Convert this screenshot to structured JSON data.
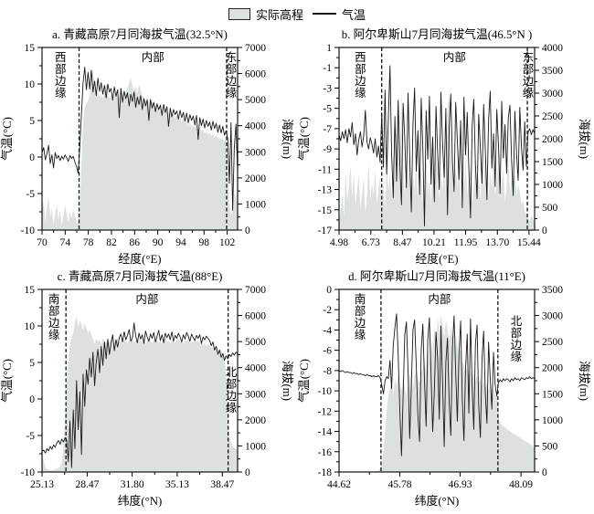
{
  "legend": {
    "elevation_label": "实际高程",
    "temperature_label": "气温"
  },
  "colors": {
    "elevation_fill": "#dce1e0",
    "temperature_line": "#1a1a1a",
    "boundary_line": "#111111",
    "axis": "#000000"
  },
  "chart_data": [
    {
      "id": "a",
      "type": "area+line",
      "title": "a. 青藏高原7月同海拔气温(32.5°N)",
      "xlabel": "经度(°E)",
      "ylabel_left": "气温(°C)",
      "ylabel_right": "海拔(m)",
      "x_range": [
        70,
        103.8
      ],
      "xticks": [
        70,
        74,
        78,
        82,
        86,
        90,
        94,
        98,
        102
      ],
      "xtick_labels": [
        "70",
        "74",
        "78",
        "82",
        "86",
        "90",
        "94",
        "98",
        "102"
      ],
      "temp_range": [
        -10,
        15
      ],
      "temp_ticks": [
        15,
        10,
        5,
        0,
        -5,
        -10
      ],
      "elev_range": [
        0,
        7000
      ],
      "elev_ticks": [
        7000,
        6000,
        5000,
        4000,
        3000,
        2000,
        1000,
        0
      ],
      "boundaries": [
        76.4,
        101.9
      ],
      "region_labels": {
        "left": "西部边缘",
        "center": "内部",
        "right": "东部边缘"
      },
      "right_label_frac": 0.0,
      "series": {
        "temperature_c": [
          0.6,
          1.3,
          -0.4,
          0.5,
          1.6,
          -0.9,
          0.3,
          -1.5,
          0.6,
          -0.2,
          0.2,
          -0.5,
          0.1,
          -0.3,
          0.3,
          -0.1,
          -0.6,
          0.2,
          -0.2,
          0.1,
          -0.7,
          -1.3,
          -2.2,
          1.5,
          6.0,
          10.2,
          12.3,
          9.2,
          11.6,
          9.3,
          11.9,
          8.9,
          10.4,
          8.4,
          10.8,
          9.0,
          10.2,
          8.6,
          9.8,
          8.1,
          10.0,
          8.9,
          9.4,
          7.8,
          9.6,
          8.3,
          9.2,
          5.4,
          9.4,
          7.5,
          9.0,
          8.0,
          8.8,
          7.0,
          8.6,
          7.6,
          8.9,
          6.8,
          8.2,
          7.2,
          8.4,
          6.5,
          8.0,
          7.0,
          7.8,
          5.0,
          7.9,
          6.7,
          7.5,
          6.2,
          7.3,
          6.5,
          7.1,
          5.7,
          7.2,
          6.1,
          6.9,
          4.2,
          6.7,
          5.5,
          6.5,
          5.8,
          6.3,
          5.2,
          6.4,
          5.4,
          6.1,
          4.9,
          6.0,
          4.7,
          5.8,
          5.0,
          5.6,
          4.4,
          5.7,
          2.4,
          5.4,
          4.3,
          5.2,
          4.0,
          5.0,
          4.2,
          4.8,
          3.7,
          4.9,
          3.9,
          4.6,
          3.4,
          4.4,
          3.3,
          4.2,
          3.0,
          3.6,
          2.5,
          -3.6,
          4.7,
          -7.3,
          1.4,
          4.5,
          -2.1
        ],
        "elevation_m": [
          700,
          1100,
          300,
          900,
          1250,
          500,
          850,
          200,
          650,
          1000,
          400,
          750,
          150,
          550,
          950,
          600,
          300,
          700,
          450,
          800,
          550,
          350,
          250,
          900,
          2600,
          4100,
          4700,
          4850,
          4950,
          5150,
          5900,
          6150,
          5450,
          5150,
          5300,
          5100,
          5200,
          5000,
          5350,
          5650,
          5250,
          5050,
          5150,
          4950,
          5100,
          5250,
          5000,
          5150,
          5400,
          5200,
          5030,
          5270,
          5450,
          5650,
          5850,
          5550,
          5350,
          5500,
          5250,
          5600,
          5400,
          5150,
          5050,
          4950,
          5100,
          4900,
          5000,
          4850,
          4900,
          4750,
          4850,
          4650,
          4750,
          4600,
          4700,
          4500,
          4650,
          4450,
          4550,
          4350,
          4500,
          4300,
          4400,
          4250,
          4350,
          4150,
          4300,
          4100,
          4200,
          4000,
          4150,
          3950,
          4050,
          3900,
          4000,
          3850,
          3950,
          3800,
          3850,
          3700,
          3800,
          3650,
          3750,
          3600,
          3700,
          3550,
          3650,
          3500,
          3550,
          3450,
          3500,
          3400,
          3450,
          2400,
          1000,
          550,
          900,
          1450,
          1100,
          1500
        ]
      }
    },
    {
      "id": "b",
      "type": "area+line",
      "title": "b. 阿尔卑斯山7月同海拔气温(46.5°N )",
      "xlabel": "经度(°E)",
      "ylabel_left": "气温(°C)",
      "ylabel_right": "海拔(m)",
      "x_range": [
        4.98,
        15.75
      ],
      "xticks": [
        4.98,
        6.73,
        8.47,
        10.21,
        11.95,
        13.7,
        15.44
      ],
      "xtick_labels": [
        "4.98",
        "6.73",
        "8.47",
        "10.21",
        "11.95",
        "13.70",
        "15.44"
      ],
      "temp_range": [
        -17,
        1
      ],
      "temp_ticks": [
        1,
        -1,
        -3,
        -5,
        -7,
        -9,
        -11,
        -13,
        -15,
        -17
      ],
      "elev_range": [
        0,
        4000
      ],
      "elev_ticks": [
        4000,
        3500,
        3000,
        2500,
        2000,
        1500,
        1000,
        500,
        0
      ],
      "boundaries": [
        7.33,
        15.35
      ],
      "region_labels": {
        "left": "西部边缘",
        "center": "内部",
        "right": "东部边缘"
      },
      "right_label_frac": 0.0,
      "series": {
        "temperature_c": [
          -7.6,
          -8.2,
          -7.3,
          -8.0,
          -7.1,
          -8.4,
          -7.0,
          -7.8,
          -6.4,
          -8.6,
          -7.5,
          -9.6,
          -8.1,
          -7.3,
          -8.8,
          -7.7,
          -5.2,
          -8.3,
          -9.0,
          -7.9,
          -8.5,
          -9.4,
          -8.0,
          -9.8,
          -8.7,
          -10.3,
          -5.5,
          -10.8,
          -3.2,
          -11.5,
          -6.0,
          -0.8,
          -9.5,
          -13.8,
          -5.8,
          -12.2,
          -4.2,
          -10.5,
          -14.5,
          -4.5,
          -8.0,
          -12.8,
          -3.5,
          -9.8,
          -15.2,
          -6.5,
          -3.0,
          -11.2,
          -7.2,
          -13.5,
          -4.0,
          -9.0,
          -16.6,
          -5.2,
          -10.0,
          -3.8,
          -12.5,
          -7.8,
          -14.2,
          -4.8,
          -9.3,
          -13.0,
          -3.4,
          -8.5,
          -11.8,
          -5.0,
          -15.5,
          -7.0,
          -3.6,
          -10.2,
          -13.2,
          -4.4,
          -8.2,
          -12.0,
          -6.2,
          -14.8,
          -3.9,
          -9.6,
          -5.4,
          -11.0,
          -15.8,
          -6.8,
          -4.1,
          -10.6,
          -13.9,
          -5.6,
          -8.9,
          -12.4,
          -4.6,
          -9.1,
          -14.0,
          -6.1,
          -3.3,
          -10.9,
          -7.5,
          -12.7,
          -5.1,
          -8.6,
          -13.4,
          -4.3,
          -9.9,
          -6.6,
          -11.4,
          -5.9,
          -4.7,
          -10.1,
          -13.6,
          -5.3,
          -9.4,
          -12.1,
          -4.9,
          -8.8,
          -11.1,
          -6.3,
          -10.7,
          -7.4,
          -7.0,
          -7.6,
          -7.1,
          -7.5
        ],
        "elevation_m": [
          150,
          420,
          820,
          310,
          1250,
          640,
          980,
          1420,
          700,
          1280,
          520,
          880,
          1230,
          460,
          800,
          1150,
          360,
          760,
          1480,
          660,
          1020,
          780,
          1340,
          560,
          900,
          1180,
          640,
          1100,
          480,
          1500,
          860,
          1250,
          700,
          1620,
          940,
          2300,
          2950,
          1750,
          3100,
          1400,
          820,
          1550,
          980,
          1800,
          650,
          1200,
          880,
          1500,
          720,
          1050,
          1350,
          560,
          950,
          1650,
          780,
          1150,
          620,
          1400,
          900,
          1750,
          1100,
          680,
          1300,
          850,
          1550,
          720,
          2600,
          3050,
          1900,
          1150,
          780,
          1450,
          950,
          1700,
          620,
          1250,
          900,
          1600,
          750,
          1100,
          1400,
          580,
          980,
          1680,
          800,
          1200,
          650,
          1450,
          920,
          1780,
          1130,
          700,
          1320,
          870,
          1580,
          740,
          1180,
          1500,
          680,
          1050,
          1380,
          600,
          970,
          1620,
          790,
          1160,
          940,
          1260,
          760,
          1010,
          830,
          560,
          640,
          420,
          360,
          280,
          200,
          320,
          240,
          180
        ]
      }
    },
    {
      "id": "c",
      "type": "area+line",
      "title": "c. 青藏高原7月同海拔气温(88°E)",
      "xlabel": "纬度(°N)",
      "ylabel_left": "气温(°C)",
      "ylabel_right": "海拔(m)",
      "x_range": [
        25.13,
        39.6
      ],
      "xticks": [
        25.13,
        28.47,
        31.8,
        35.13,
        38.47
      ],
      "xtick_labels": [
        "25.13",
        "28.47",
        "31.80",
        "35.13",
        "38.47"
      ],
      "temp_range": [
        -10,
        15
      ],
      "temp_ticks": [
        15,
        10,
        5,
        0,
        -5,
        -10
      ],
      "elev_range": [
        0,
        7000
      ],
      "elev_ticks": [
        7000,
        6000,
        5000,
        4000,
        3000,
        2000,
        1000,
        0
      ],
      "boundaries": [
        26.9,
        38.9
      ],
      "region_labels": {
        "left": "南部边缘",
        "center": "内部",
        "right": "北部边缘"
      },
      "right_label_frac": 0.4,
      "series": {
        "temperature_c": [
          -7.2,
          -7.0,
          -7.4,
          -6.8,
          -7.1,
          -6.5,
          -6.9,
          -6.3,
          -6.6,
          -6.0,
          -5.7,
          -6.2,
          -5.5,
          -5.9,
          -5.3,
          -5.6,
          -8.6,
          -3.0,
          -9.4,
          -1.5,
          -6.8,
          2.5,
          -4.2,
          1.0,
          -7.6,
          3.4,
          -1.0,
          4.0,
          2.0,
          5.6,
          3.0,
          6.4,
          1.8,
          5.1,
          6.8,
          3.6,
          7.2,
          4.6,
          7.8,
          5.5,
          8.2,
          6.1,
          7.6,
          8.8,
          6.6,
          8.1,
          7.1,
          8.4,
          8.9,
          7.8,
          9.2,
          8.1,
          8.7,
          9.5,
          7.9,
          8.4,
          10.4,
          8.6,
          7.7,
          9.0,
          8.2,
          8.8,
          7.6,
          9.3,
          8.5,
          7.9,
          8.9,
          8.3,
          9.1,
          7.8,
          8.6,
          9.4,
          8.0,
          8.8,
          7.7,
          9.0,
          8.4,
          8.9,
          8.1,
          9.2,
          7.9,
          8.7,
          8.3,
          9.0,
          8.5,
          7.8,
          8.8,
          8.2,
          9.1,
          8.6,
          7.9,
          8.9,
          8.4,
          8.0,
          8.7,
          8.3,
          8.8,
          7.6,
          8.5,
          8.1,
          8.6,
          8.3,
          8.0,
          7.3,
          7.8,
          6.7,
          7.2,
          6.1,
          6.7,
          5.7,
          6.2,
          5.3,
          5.9,
          5.5,
          6.1,
          5.8,
          6.3,
          6.0,
          6.4,
          6.2
        ],
        "elevation_m": [
          650,
          450,
          200,
          120,
          90,
          70,
          60,
          80,
          100,
          130,
          160,
          220,
          380,
          900,
          2000,
          3300,
          4300,
          4850,
          5150,
          5350,
          5750,
          5950,
          5550,
          5820,
          5650,
          5420,
          5720,
          5520,
          5320,
          5460,
          5260,
          5080,
          4940,
          5110,
          4990,
          5060,
          4910,
          5130,
          5010,
          4950,
          5090,
          4970,
          5120,
          5000,
          4930,
          5070,
          5140,
          4960,
          5040,
          4900,
          5100,
          5020,
          4940,
          5080,
          5000,
          5130,
          4950,
          5060,
          4920,
          5090,
          5010,
          4970,
          5110,
          4930,
          5050,
          5120,
          4990,
          4940,
          5070,
          5000,
          5100,
          4960,
          5030,
          4910,
          5080,
          5140,
          4980,
          5050,
          4920,
          5090,
          5010,
          4950,
          5060,
          5120,
          4970,
          5040,
          4900,
          5080,
          5000,
          5110,
          4940,
          5020,
          4960,
          5070,
          4990,
          5050,
          4930,
          5010,
          4880,
          4950,
          4850,
          4900,
          4820,
          4760,
          4800,
          4700,
          4740,
          4660,
          4600,
          4640,
          4560,
          4500,
          3600,
          2200,
          1350,
          1120,
          1000,
          930,
          880,
          840
        ]
      }
    },
    {
      "id": "d",
      "type": "area+line",
      "title": "d. 阿尔卑斯山7月同海拔气温(11°E)",
      "xlabel": "纬度(°N)",
      "ylabel_left": "气温(°C)",
      "ylabel_right": "海拔(m)",
      "x_range": [
        44.62,
        48.35
      ],
      "xticks": [
        44.62,
        45.78,
        46.93,
        48.09
      ],
      "xtick_labels": [
        "44.62",
        "45.78",
        "46.93",
        "48.09"
      ],
      "temp_range": [
        -18,
        0
      ],
      "temp_ticks": [
        0,
        -2,
        -4,
        -6,
        -8,
        -10,
        -12,
        -14,
        -16,
        -18
      ],
      "elev_range": [
        0,
        3500
      ],
      "elev_ticks": [
        3500,
        3000,
        2500,
        2000,
        1500,
        1000,
        500,
        0
      ],
      "boundaries": [
        45.42,
        47.65
      ],
      "region_labels": {
        "left": "南部边缘",
        "center": "内部",
        "right": "北部边缘"
      },
      "right_label_frac": 0.12,
      "series": {
        "temperature_c": [
          -8.0,
          -8.1,
          -8.0,
          -8.1,
          -8.2,
          -8.1,
          -8.2,
          -8.2,
          -8.3,
          -8.2,
          -8.3,
          -8.3,
          -8.4,
          -8.3,
          -8.4,
          -8.4,
          -8.5,
          -8.4,
          -8.5,
          -8.5,
          -8.6,
          -8.5,
          -8.6,
          -8.6,
          -8.5,
          -8.7,
          -9.4,
          -10.3,
          -9.0,
          -8.6,
          -8.8,
          -7.0,
          -9.8,
          -5.5,
          -3.8,
          -2.4,
          -6.5,
          -12.0,
          -16.4,
          -10.5,
          -4.5,
          -3.2,
          -8.0,
          -14.7,
          -9.5,
          -4.0,
          -3.0,
          -7.5,
          -12.5,
          -15.0,
          -6.0,
          -3.4,
          -9.0,
          -13.5,
          -5.0,
          -2.8,
          -8.5,
          -14.0,
          -10.0,
          -4.2,
          -6.8,
          -12.8,
          -3.6,
          -9.2,
          -15.5,
          -7.2,
          -4.8,
          -11.0,
          -14.4,
          -5.8,
          -2.6,
          -8.2,
          -13.0,
          -6.4,
          -3.1,
          -10.8,
          -14.9,
          -7.8,
          -4.4,
          -12.2,
          -2.9,
          -9.6,
          -13.8,
          -5.4,
          -3.5,
          -11.5,
          -14.6,
          -6.9,
          -4.1,
          -10.2,
          -13.2,
          -5.2,
          -8.8,
          -11.8,
          -6.2,
          -9.4,
          -10.5,
          -9.2,
          -8.9,
          -9.1,
          -8.8,
          -9.0,
          -8.8,
          -8.9,
          -9.1,
          -8.8,
          -9.0,
          -8.7,
          -8.9,
          -8.8,
          -9.0,
          -8.7,
          -8.8,
          -8.9,
          -8.7,
          -8.8,
          -8.6,
          -8.8,
          -8.7,
          -8.8
        ],
        "elevation_m": [
          10,
          10,
          10,
          10,
          10,
          10,
          10,
          10,
          10,
          10,
          10,
          10,
          10,
          10,
          10,
          10,
          10,
          10,
          10,
          10,
          10,
          10,
          15,
          20,
          30,
          60,
          150,
          400,
          800,
          1200,
          1450,
          1600,
          1750,
          1500,
          1800,
          1650,
          1900,
          1700,
          1550,
          1850,
          1600,
          1450,
          1700,
          1900,
          1750,
          1600,
          1850,
          1950,
          1800,
          1700,
          1900,
          2000,
          2200,
          1900,
          2400,
          2100,
          2600,
          2300,
          2800,
          2500,
          2950,
          2700,
          3000,
          2850,
          2600,
          2900,
          2750,
          2500,
          2800,
          2600,
          2400,
          2650,
          2450,
          2200,
          2350,
          2100,
          2050,
          1900,
          2000,
          1850,
          1950,
          1800,
          1900,
          1750,
          1850,
          1700,
          1800,
          1650,
          1750,
          1600,
          1700,
          1550,
          1650,
          1500,
          1600,
          1450,
          1550,
          1100,
          950,
          900,
          880,
          850,
          830,
          800,
          780,
          760,
          740,
          720,
          700,
          680,
          660,
          640,
          620,
          600,
          580,
          560,
          540,
          520,
          500,
          470
        ]
      }
    }
  ]
}
